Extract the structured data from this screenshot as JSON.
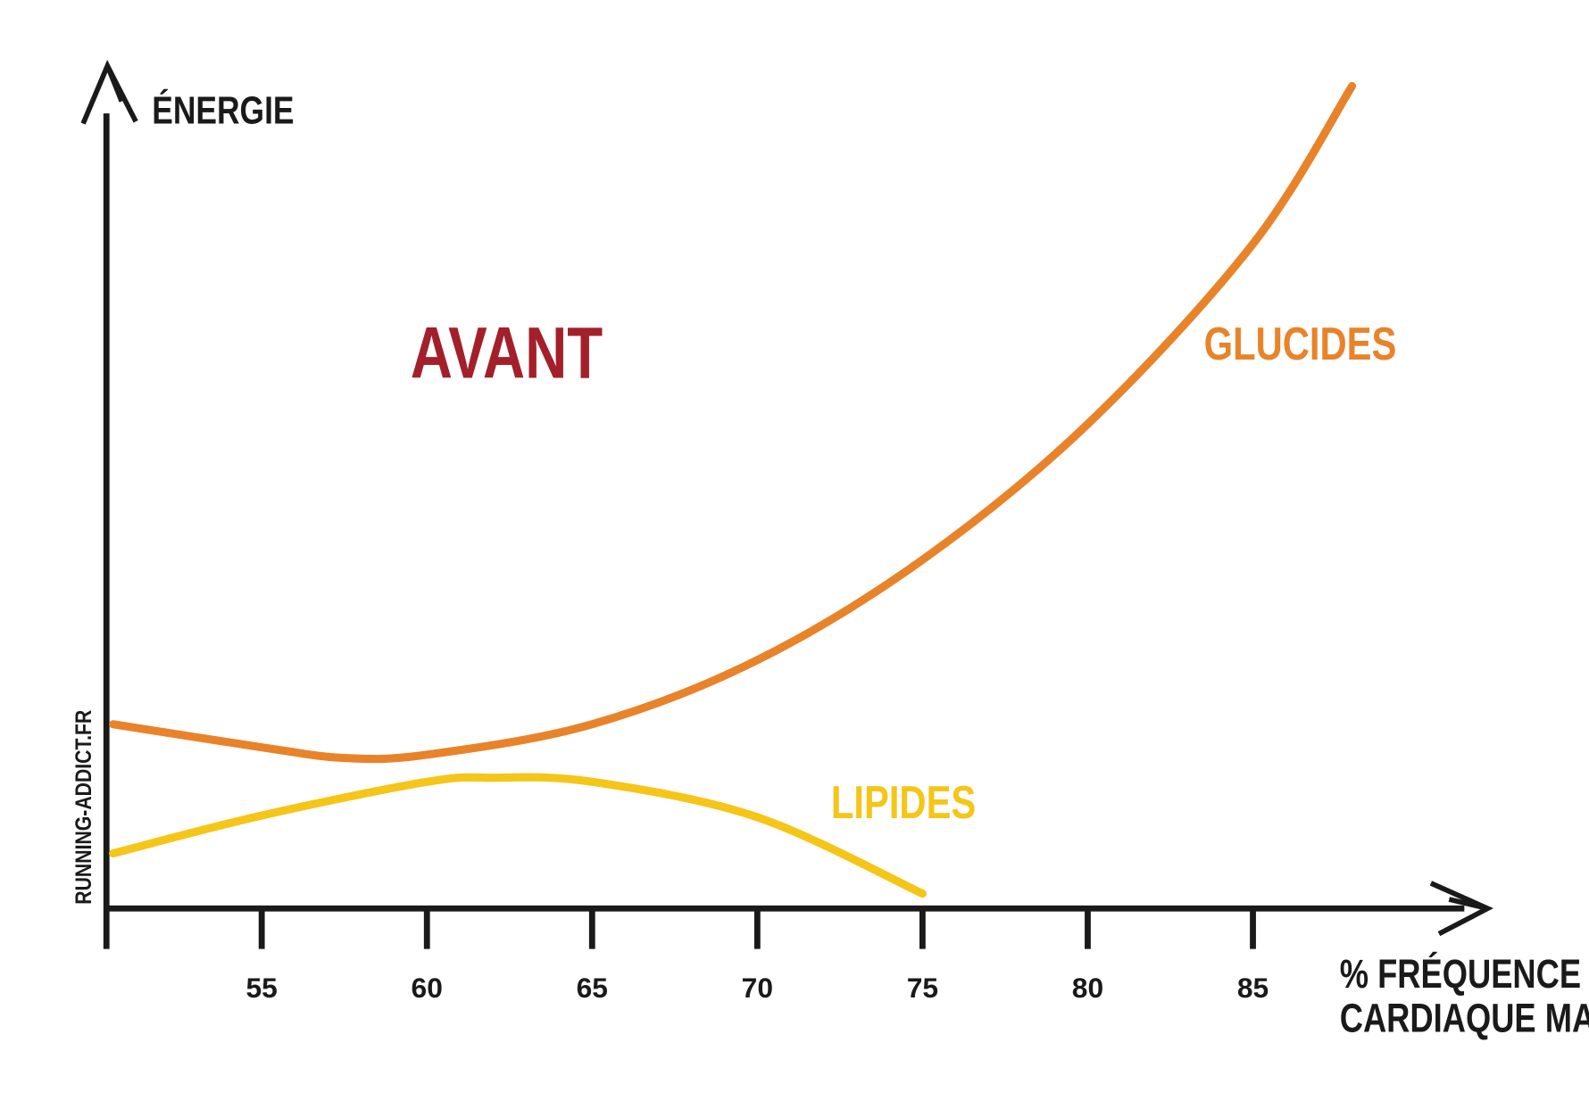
{
  "chart_data": {
    "type": "line",
    "title": "AVANT",
    "ylabel": "ÉNERGIE",
    "xlabel": [
      "% FRÉQUENCE",
      "CARDIAQUE MAX"
    ],
    "watermark": "RUNNING-ADDICT.FR",
    "xlim": [
      50.3,
      91
    ],
    "ylim": [
      0,
      100
    ],
    "xticks": [
      55,
      60,
      65,
      70,
      75,
      80,
      85
    ],
    "series": [
      {
        "name": "GLUCIDES",
        "color": "#e8832a",
        "x": [
          50.5,
          55,
          57.5,
          60,
          65,
          70,
          75,
          80,
          85,
          88
        ],
        "values": [
          22.4,
          19.6,
          18.3,
          18.7,
          22.4,
          30.2,
          42.4,
          58.9,
          80.8,
          100
        ]
      },
      {
        "name": "LIPIDES",
        "color": "#f5c518",
        "x": [
          50.5,
          55,
          60,
          62,
          65,
          70,
          75
        ],
        "values": [
          6.7,
          11.3,
          15.4,
          15.9,
          15.4,
          11.1,
          1.8
        ]
      }
    ]
  }
}
